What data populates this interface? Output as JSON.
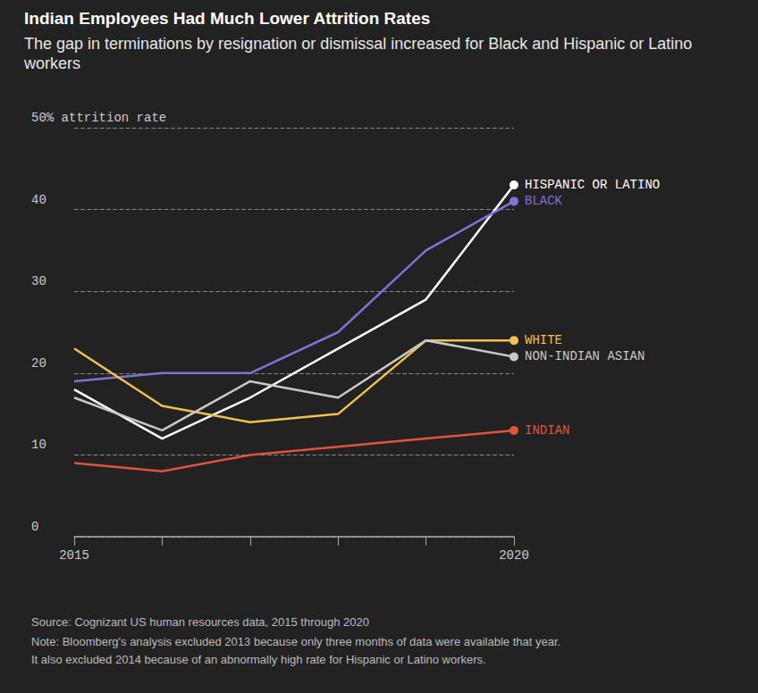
{
  "chart_data": {
    "type": "line",
    "title": "Indian Employees Had Much Lower Attrition Rates",
    "subtitle": "The gap in terminations by resignation or dismissal increased for Black and Hispanic or Latino workers",
    "source": "Source: Cognizant US human resources data, 2015 through 2020",
    "note": [
      "Note: Bloomberg's analysis excluded 2013 because only three months of data were available that year.",
      "It also excluded 2014 because of an abnormally high rate for Hispanic or Latino workers."
    ],
    "categories": [
      "2015",
      null,
      null,
      null,
      null,
      "2020"
    ],
    "series": [
      {
        "name": "HISPANIC OR LATINO",
        "color": "#ffffff",
        "values": [
          18,
          12,
          17,
          23,
          29,
          43
        ]
      },
      {
        "name": "BLACK",
        "color": "#7b74d6",
        "values": [
          19,
          20,
          20,
          25,
          35,
          41
        ]
      },
      {
        "name": "WHITE",
        "color": "#f2c14e",
        "values": [
          23,
          16,
          14,
          15,
          24,
          24
        ]
      },
      {
        "name": "NON-INDIAN ASIAN",
        "color": "#c8c8c8",
        "values": [
          17,
          13,
          19,
          17,
          24,
          22
        ]
      },
      {
        "name": "INDIAN",
        "color": "#e0533d",
        "values": [
          9,
          8,
          10,
          11,
          12,
          13
        ]
      }
    ],
    "ylim": [
      0,
      50
    ],
    "yticks": [
      0,
      10,
      20,
      30,
      40,
      {
        "value": 50,
        "label": "50% attrition rate"
      }
    ],
    "grid": true
  }
}
